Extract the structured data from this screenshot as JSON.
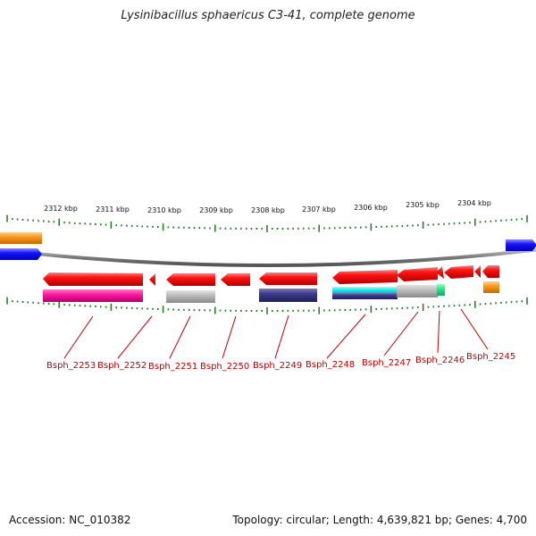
{
  "title": "Lysinibacillus sphaericus C3-41, complete genome",
  "accession": "Accession: NC_010382",
  "summary": "Topology: circular; Length: 4,639,821 bp; Genes: 4,700",
  "coordinate_ticks": [
    "2312 kbp",
    "2311 kbp",
    "2310 kbp",
    "2309 kbp",
    "2308 kbp",
    "2307 kbp",
    "2306 kbp",
    "2305 kbp",
    "2304 kbp"
  ],
  "gene_labels": [
    "Bsph_2253",
    "Bsph_2252",
    "Bsph_2251",
    "Bsph_2250",
    "Bsph_2249",
    "Bsph_2248",
    "Bsph_2247",
    "Bsph_2246",
    "Bsph_2245"
  ],
  "colors": {
    "gene": "#ff1414",
    "label": "#c00000",
    "tick": "#1a7a1a",
    "backbone": "#7a7a7a",
    "magenta": "#ff1aa0",
    "gray": "#b8b8b8",
    "navy": "#3a3a88",
    "cyan": "#22eeee",
    "green": "#22ee88",
    "orange": "#ff9922",
    "blue": "#1414ff"
  }
}
